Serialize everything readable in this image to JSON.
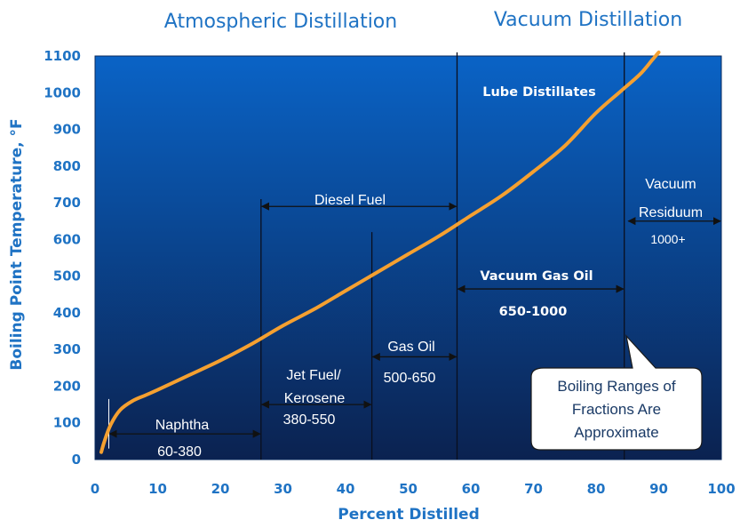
{
  "chart_data": {
    "type": "line",
    "titles": [
      "Atmospheric Distillation",
      "Vacuum Distillation"
    ],
    "xlabel": "Percent Distilled",
    "ylabel": "Boiling Point Temperature, °F",
    "xlim": [
      0,
      100
    ],
    "ylim": [
      0,
      1100
    ],
    "xticks": [
      0,
      10,
      20,
      30,
      40,
      50,
      60,
      70,
      80,
      90,
      100
    ],
    "yticks": [
      0,
      100,
      200,
      300,
      400,
      500,
      600,
      700,
      800,
      900,
      1000,
      1100
    ],
    "grid": false,
    "curve_color": "#f5a030",
    "background_top": "#0a63c6",
    "background_bottom": "#0b2250",
    "series": [
      {
        "x": [
          1,
          1.5,
          2.5,
          4,
          6,
          8,
          10,
          15,
          20,
          25,
          30,
          35,
          40,
          45,
          50,
          55,
          60,
          65,
          70,
          75,
          80,
          84,
          87,
          89,
          90
        ],
        "y": [
          20,
          50,
          95,
          135,
          160,
          175,
          190,
          230,
          270,
          315,
          365,
          410,
          460,
          510,
          560,
          610,
          665,
          720,
          785,
          855,
          945,
          1005,
          1050,
          1090,
          1110
        ]
      }
    ],
    "divider_lines": [
      {
        "x": 26.5,
        "y_top": 710
      },
      {
        "x": 44.2,
        "y_top": 620
      },
      {
        "x": 57.8,
        "y_top": 1110
      },
      {
        "x": 84.5,
        "y_top": 1110
      }
    ],
    "naphtha_marker_x": 2.2,
    "fractions": [
      {
        "name": "Naphtha",
        "range": "60-380",
        "x_start": 2.2,
        "x_end": 26.5,
        "arrow_y": 70
      },
      {
        "name": "Diesel Fuel",
        "range": "",
        "x_start": 26.5,
        "x_end": 57.8,
        "arrow_y": 690
      },
      {
        "name": "Jet Fuel/ Kerosene",
        "name_lines": [
          "Jet Fuel/",
          "Kerosene"
        ],
        "range": "380-550",
        "x_start": 26.5,
        "x_end": 44.2,
        "arrow_y": 150
      },
      {
        "name": "Gas Oil",
        "range": "500-650",
        "x_start": 44.2,
        "x_end": 57.8,
        "arrow_y": 280
      },
      {
        "name": "Vacuum Gas Oil",
        "range": "650-1000",
        "x_start": 57.8,
        "x_end": 84.5,
        "arrow_y": 465
      },
      {
        "name": "Lube Distillates",
        "range": ""
      },
      {
        "name": "Vacuum Residuum",
        "name_lines": [
          "Vacuum",
          "Residuum"
        ],
        "range": "1000+",
        "x_start": 85,
        "x_end": 100,
        "arrow_y": 650
      }
    ],
    "callout": {
      "lines": [
        "Boiling Ranges of",
        "Fractions Are",
        "Approximate"
      ]
    }
  }
}
